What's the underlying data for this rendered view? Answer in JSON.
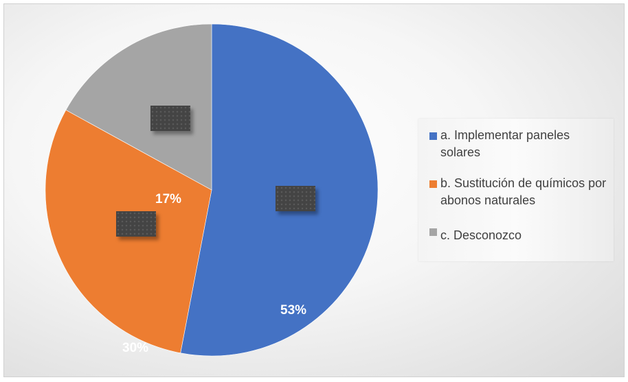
{
  "chart_data": {
    "type": "pie",
    "title": "",
    "categories": [
      "a. Implementar paneles solares",
      "b. Sustitución de químicos por abonos naturales",
      "c. Desconozco"
    ],
    "values": [
      53,
      30,
      17
    ],
    "data_labels": [
      "53%",
      "30%",
      "17%"
    ],
    "colors": [
      "#4472c4",
      "#ed7d31",
      "#a5a5a5"
    ],
    "legend_placement": "right"
  }
}
